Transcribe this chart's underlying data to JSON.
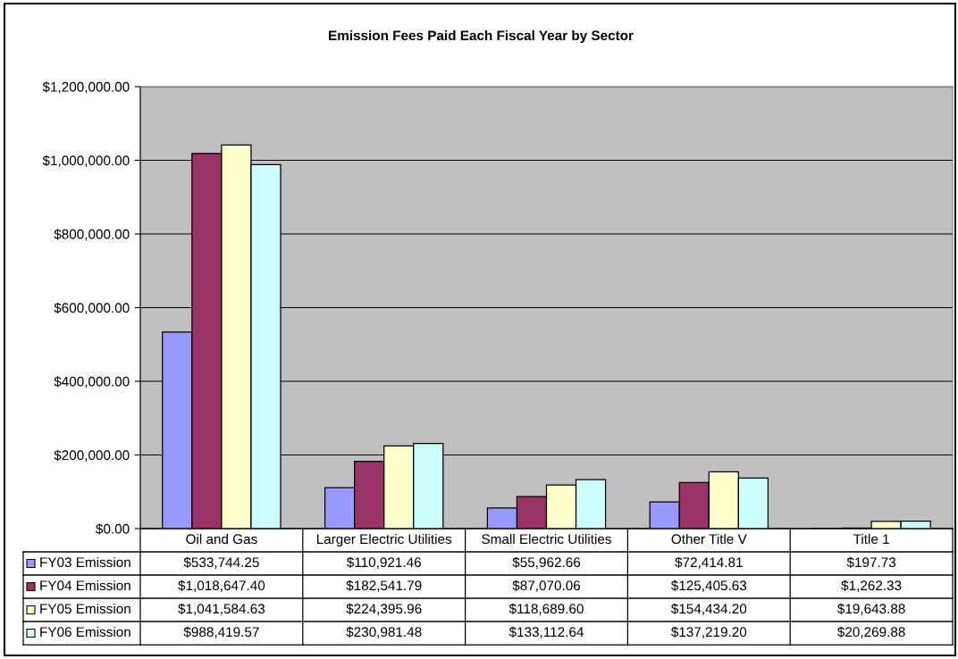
{
  "chart_data": {
    "type": "bar",
    "title": "Emission Fees Paid Each Fiscal Year by Sector",
    "categories": [
      "Oil and Gas",
      "Larger Electric Utilities",
      "Small Electric Utilities",
      "Other Title V",
      "Title 1"
    ],
    "series": [
      {
        "name": "FY03 Emission",
        "color": "#9999ff",
        "values": [
          533744.25,
          110921.46,
          55962.66,
          72414.81,
          197.73
        ],
        "value_labels": [
          "$533,744.25",
          "$110,921.46",
          "$55,962.66",
          "$72,414.81",
          "$197.73"
        ]
      },
      {
        "name": "FY04 Emission",
        "color": "#993366",
        "values": [
          1018647.4,
          182541.79,
          87070.06,
          125405.63,
          1262.33
        ],
        "value_labels": [
          "$1,018,647.40",
          "$182,541.79",
          "$87,070.06",
          "$125,405.63",
          "$1,262.33"
        ]
      },
      {
        "name": "FY05 Emission",
        "color": "#ffffcc",
        "values": [
          1041584.63,
          224395.96,
          118689.6,
          154434.2,
          19643.88
        ],
        "value_labels": [
          "$1,041,584.63",
          "$224,395.96",
          "$118,689.60",
          "$154,434.20",
          "$19,643.88"
        ]
      },
      {
        "name": "FY06 Emission",
        "color": "#ccffff",
        "values": [
          988419.57,
          230981.48,
          133112.64,
          137219.2,
          20269.88
        ],
        "value_labels": [
          "$988,419.57",
          "$230,981.48",
          "$133,112.64",
          "$137,219.20",
          "$20,269.88"
        ]
      }
    ],
    "ylim": [
      0,
      1200000
    ],
    "yticks": [
      {
        "value": 0,
        "label": "$0.00"
      },
      {
        "value": 200000,
        "label": "$200,000.00"
      },
      {
        "value": 400000,
        "label": "$400,000.00"
      },
      {
        "value": 600000,
        "label": "$600,000.00"
      },
      {
        "value": 800000,
        "label": "$800,000.00"
      },
      {
        "value": 1000000,
        "label": "$1,000,000.00"
      },
      {
        "value": 1200000,
        "label": "$1,200,000.00"
      }
    ],
    "grid": "y",
    "legend": "bottom"
  }
}
